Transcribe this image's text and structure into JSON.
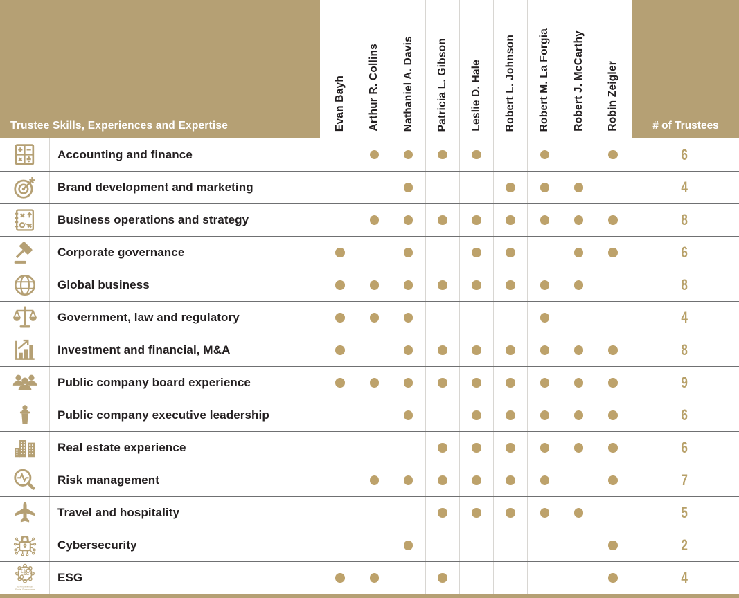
{
  "theme": {
    "accent": "#b5a074",
    "dot_color": "#bda26b",
    "count_color": "#b7a068",
    "ink_color": "#231f20",
    "grid_light": "#d8d6d2",
    "grid_dark": "#6f7072"
  },
  "header": {
    "title": "Trustee Skills, Experiences and Expertise",
    "count_label": "# of Trustees",
    "trustees": [
      "Evan Bayh",
      "Arthur R. Collins",
      "Nathaniel A. Davis",
      "Patricia L. Gibson",
      "Leslie D. Hale",
      "Robert L. Johnson",
      "Robert M. La Forgia",
      "Robert J. McCarthy",
      "Robin Zeigler"
    ]
  },
  "rows": [
    {
      "icon": "calculator-icon",
      "label": "Accounting and finance",
      "marks": [
        0,
        1,
        1,
        1,
        1,
        0,
        1,
        0,
        1
      ],
      "count": "6"
    },
    {
      "icon": "target-arrow-icon",
      "label": "Brand development and marketing",
      "marks": [
        0,
        0,
        1,
        0,
        0,
        1,
        1,
        1,
        0
      ],
      "count": "4"
    },
    {
      "icon": "strategy-icon",
      "label": "Business operations and strategy",
      "marks": [
        0,
        1,
        1,
        1,
        1,
        1,
        1,
        1,
        1
      ],
      "count": "8"
    },
    {
      "icon": "gavel-icon",
      "label": "Corporate governance",
      "marks": [
        1,
        0,
        1,
        0,
        1,
        1,
        0,
        1,
        1
      ],
      "count": "6"
    },
    {
      "icon": "globe-icon",
      "label": "Global business",
      "marks": [
        1,
        1,
        1,
        1,
        1,
        1,
        1,
        1,
        0
      ],
      "count": "8"
    },
    {
      "icon": "scales-icon",
      "label": "Government, law and regulatory",
      "marks": [
        1,
        1,
        1,
        0,
        0,
        0,
        1,
        0,
        0
      ],
      "count": "4"
    },
    {
      "icon": "chart-growth-icon",
      "label": "Investment and financial, M&A",
      "marks": [
        1,
        0,
        1,
        1,
        1,
        1,
        1,
        1,
        1
      ],
      "count": "8"
    },
    {
      "icon": "people-icon",
      "label": "Public company board experience",
      "marks": [
        1,
        1,
        1,
        1,
        1,
        1,
        1,
        1,
        1
      ],
      "count": "9"
    },
    {
      "icon": "podium-icon",
      "label": "Public company executive leadership",
      "marks": [
        0,
        0,
        1,
        0,
        1,
        1,
        1,
        1,
        1
      ],
      "count": "6"
    },
    {
      "icon": "buildings-icon",
      "label": "Real estate experience",
      "marks": [
        0,
        0,
        0,
        1,
        1,
        1,
        1,
        1,
        1
      ],
      "count": "6"
    },
    {
      "icon": "magnifier-pulse-icon",
      "label": "Risk management",
      "marks": [
        0,
        1,
        1,
        1,
        1,
        1,
        1,
        0,
        1
      ],
      "count": "7"
    },
    {
      "icon": "airplane-icon",
      "label": "Travel and hospitality",
      "marks": [
        0,
        0,
        0,
        1,
        1,
        1,
        1,
        1,
        0
      ],
      "count": "5"
    },
    {
      "icon": "cybersecurity-icon",
      "label": "Cybersecurity",
      "marks": [
        0,
        0,
        1,
        0,
        0,
        0,
        0,
        0,
        1
      ],
      "count": "2"
    },
    {
      "icon": "esg-gear-icon",
      "label": "ESG",
      "marks": [
        1,
        1,
        0,
        1,
        0,
        0,
        0,
        0,
        1
      ],
      "count": "4",
      "icon_caption_line1": "Environmental",
      "icon_caption_line2": "Social Governance",
      "icon_text": "ESG"
    }
  ]
}
